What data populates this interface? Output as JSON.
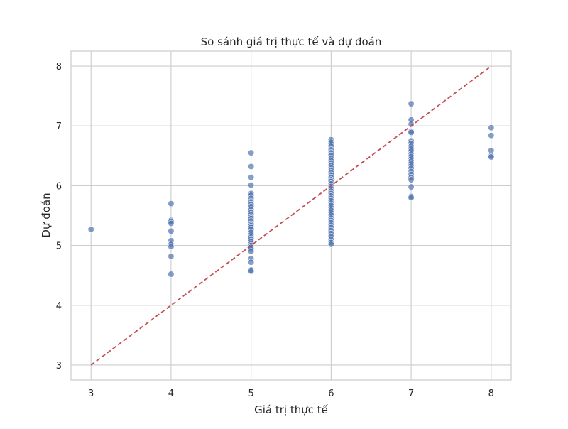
{
  "chart_data": {
    "type": "scatter",
    "title": "So sánh giá trị thực tế và dự đoán",
    "xlabel": "Giá trị thực tế",
    "ylabel": "Dự đoán",
    "xlim": [
      2.75,
      8.25
    ],
    "ylim": [
      2.75,
      8.25
    ],
    "xticks": [
      3,
      4,
      5,
      6,
      7,
      8
    ],
    "yticks": [
      3,
      4,
      5,
      6,
      7,
      8
    ],
    "grid": true,
    "colors": {
      "points": "#4c72b0",
      "reference_line": "#c44e52",
      "grid": "#cccccc",
      "spine": "#cccccc"
    },
    "reference_line": {
      "style": "dashed",
      "from": [
        3,
        3
      ],
      "to": [
        8,
        8
      ]
    },
    "points": [
      [
        3,
        5.27
      ],
      [
        4,
        5.7
      ],
      [
        4,
        5.42
      ],
      [
        4,
        5.4
      ],
      [
        4,
        5.37
      ],
      [
        4,
        5.24
      ],
      [
        4,
        5.08
      ],
      [
        4,
        5.02
      ],
      [
        4,
        4.98
      ],
      [
        4,
        4.82
      ],
      [
        4,
        4.52
      ],
      [
        5,
        6.55
      ],
      [
        5,
        6.32
      ],
      [
        5,
        6.14
      ],
      [
        5,
        6.01
      ],
      [
        5,
        5.87
      ],
      [
        5,
        5.84
      ],
      [
        5,
        5.79
      ],
      [
        5,
        5.73
      ],
      [
        5,
        5.69
      ],
      [
        5,
        5.65
      ],
      [
        5,
        5.6
      ],
      [
        5,
        5.56
      ],
      [
        5,
        5.52
      ],
      [
        5,
        5.48
      ],
      [
        5,
        5.45
      ],
      [
        5,
        5.41
      ],
      [
        5,
        5.36
      ],
      [
        5,
        5.33
      ],
      [
        5,
        5.3
      ],
      [
        5,
        5.27
      ],
      [
        5,
        5.22
      ],
      [
        5,
        5.18
      ],
      [
        5,
        5.14
      ],
      [
        5,
        5.11
      ],
      [
        5,
        5.07
      ],
      [
        5,
        5.03
      ],
      [
        5,
        5.0
      ],
      [
        5,
        4.97
      ],
      [
        5,
        4.94
      ],
      [
        5,
        4.9
      ],
      [
        5,
        4.78
      ],
      [
        5,
        4.72
      ],
      [
        5,
        4.59
      ],
      [
        5,
        4.57
      ],
      [
        6,
        6.77
      ],
      [
        6,
        6.73
      ],
      [
        6,
        6.7
      ],
      [
        6,
        6.66
      ],
      [
        6,
        6.6
      ],
      [
        6,
        6.55
      ],
      [
        6,
        6.51
      ],
      [
        6,
        6.46
      ],
      [
        6,
        6.42
      ],
      [
        6,
        6.38
      ],
      [
        6,
        6.34
      ],
      [
        6,
        6.3
      ],
      [
        6,
        6.26
      ],
      [
        6,
        6.22
      ],
      [
        6,
        6.18
      ],
      [
        6,
        6.14
      ],
      [
        6,
        6.1
      ],
      [
        6,
        6.07
      ],
      [
        6,
        6.03
      ],
      [
        6,
        5.99
      ],
      [
        6,
        5.95
      ],
      [
        6,
        5.91
      ],
      [
        6,
        5.87
      ],
      [
        6,
        5.83
      ],
      [
        6,
        5.79
      ],
      [
        6,
        5.75
      ],
      [
        6,
        5.71
      ],
      [
        6,
        5.67
      ],
      [
        6,
        5.63
      ],
      [
        6,
        5.59
      ],
      [
        6,
        5.55
      ],
      [
        6,
        5.51
      ],
      [
        6,
        5.46
      ],
      [
        6,
        5.42
      ],
      [
        6,
        5.38
      ],
      [
        6,
        5.34
      ],
      [
        6,
        5.3
      ],
      [
        6,
        5.25
      ],
      [
        6,
        5.2
      ],
      [
        6,
        5.15
      ],
      [
        6,
        5.1
      ],
      [
        6,
        5.05
      ],
      [
        6,
        5.02
      ],
      [
        7,
        7.37
      ],
      [
        7,
        7.1
      ],
      [
        7,
        7.03
      ],
      [
        7,
        6.91
      ],
      [
        7,
        6.89
      ],
      [
        7,
        6.75
      ],
      [
        7,
        6.71
      ],
      [
        7,
        6.66
      ],
      [
        7,
        6.62
      ],
      [
        7,
        6.58
      ],
      [
        7,
        6.53
      ],
      [
        7,
        6.49
      ],
      [
        7,
        6.45
      ],
      [
        7,
        6.41
      ],
      [
        7,
        6.37
      ],
      [
        7,
        6.33
      ],
      [
        7,
        6.29
      ],
      [
        7,
        6.24
      ],
      [
        7,
        6.19
      ],
      [
        7,
        6.14
      ],
      [
        7,
        6.1
      ],
      [
        7,
        5.98
      ],
      [
        7,
        5.82
      ],
      [
        7,
        5.8
      ],
      [
        8,
        6.97
      ],
      [
        8,
        6.84
      ],
      [
        8,
        6.59
      ],
      [
        8,
        6.5
      ],
      [
        8,
        6.48
      ]
    ]
  }
}
